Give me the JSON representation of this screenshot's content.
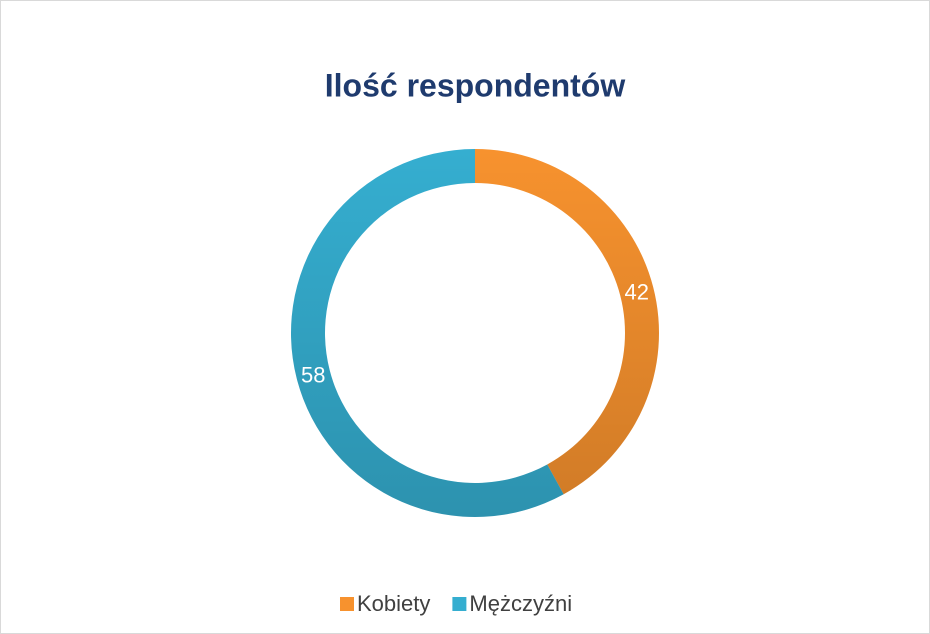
{
  "chart_data": {
    "type": "doughnut",
    "title": "Ilość respondentów",
    "categories": [
      "Kobiety",
      "Mężczyźni"
    ],
    "values": [
      42,
      58
    ],
    "colors": [
      "#f7922e",
      "#35aed0"
    ],
    "legend": "bottom"
  }
}
